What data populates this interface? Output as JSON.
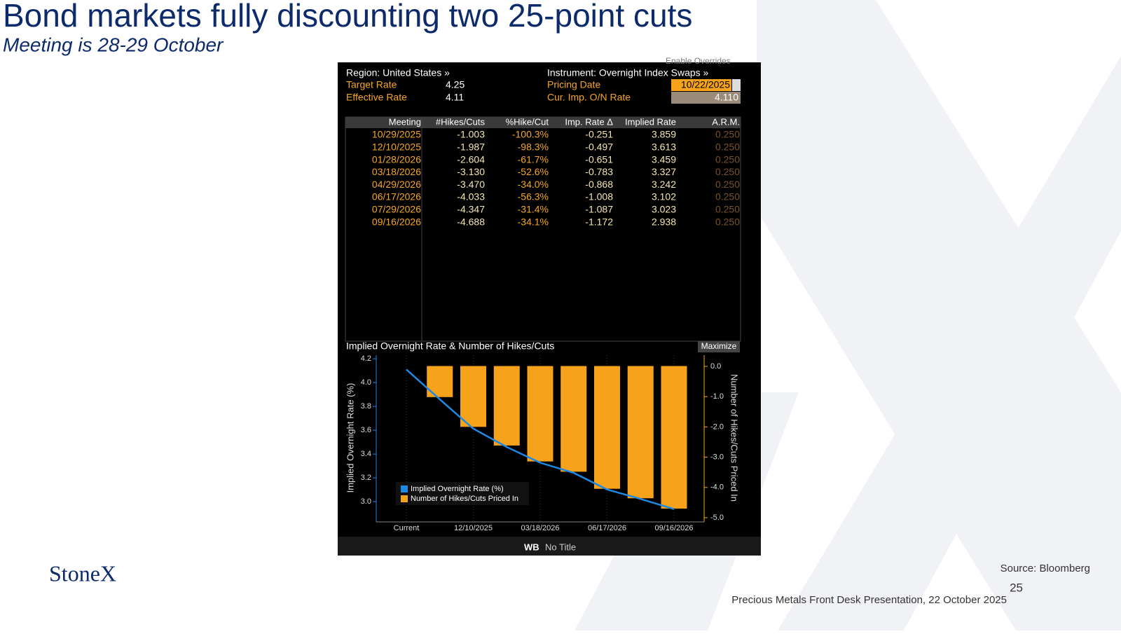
{
  "title": "Bond markets fully discounting two 25-point cuts",
  "subtitle": "Meeting is 28-29 October",
  "terminal": {
    "overrides": "Enable Overrides",
    "region": "Region: United States »",
    "instrument": "Instrument: Overnight Index Swaps »",
    "fields": [
      {
        "label": "Target Rate",
        "value": "4.25"
      },
      {
        "label": "Effective Rate",
        "value": "4.11"
      }
    ],
    "pricing_date_label": "Pricing Date",
    "pricing_date": "10/22/2025",
    "on_rate_label": "Cur. Imp. O/N Rate",
    "on_rate": "4.110",
    "table": {
      "columns": [
        "Meeting",
        "#Hikes/Cuts",
        "%Hike/Cut",
        "Imp. Rate Δ",
        "Implied Rate",
        "A.R.M."
      ],
      "rows": [
        [
          "10/29/2025",
          "-1.003",
          "-100.3%",
          "-0.251",
          "3.859",
          "0.250"
        ],
        [
          "12/10/2025",
          "-1.987",
          "-98.3%",
          "-0.497",
          "3.613",
          "0.250"
        ],
        [
          "01/28/2026",
          "-2.604",
          "-61.7%",
          "-0.651",
          "3.459",
          "0.250"
        ],
        [
          "03/18/2026",
          "-3.130",
          "-52.6%",
          "-0.783",
          "3.327",
          "0.250"
        ],
        [
          "04/29/2026",
          "-3.470",
          "-34.0%",
          "-0.868",
          "3.242",
          "0.250"
        ],
        [
          "06/17/2026",
          "-4.033",
          "-56.3%",
          "-1.008",
          "3.102",
          "0.250"
        ],
        [
          "07/29/2026",
          "-4.347",
          "-31.4%",
          "-1.087",
          "3.023",
          "0.250"
        ],
        [
          "09/16/2026",
          "-4.688",
          "-34.1%",
          "-1.172",
          "2.938",
          "0.250"
        ]
      ]
    },
    "chart_header": "Implied Overnight Rate & Number of Hikes/Cuts",
    "maximize": "Maximize",
    "footer_code": "WB",
    "footer_title": "No Title"
  },
  "chart_data": {
    "type": "combo",
    "categories": [
      "Current",
      null,
      "12/10/2025",
      null,
      "03/18/2026",
      null,
      "06/17/2026",
      null,
      "09/16/2026"
    ],
    "series": [
      {
        "name": "Implied Overnight Rate (%)",
        "type": "line",
        "color": "#1e88e5",
        "values": [
          4.11,
          3.859,
          3.613,
          3.459,
          3.327,
          3.242,
          3.102,
          3.023,
          2.938
        ]
      },
      {
        "name": "Number of Hikes/Cuts Priced In",
        "type": "bar",
        "color": "#f7a21b",
        "axis": "y2",
        "values": [
          0,
          -1.003,
          -1.987,
          -2.604,
          -3.13,
          -3.47,
          -4.033,
          -4.347,
          -4.688
        ]
      }
    ],
    "ylabel": "Implied Overnight Rate (%)",
    "y2label": "Number of Hikes/Cuts Priced In",
    "ylim": [
      2.83,
      4.23
    ],
    "yticks": [
      {
        "value": 3,
        "label": "3.0"
      },
      3.2,
      3.4,
      3.6,
      3.8,
      {
        "value": 4,
        "label": "4.0"
      },
      4.2
    ],
    "y2lim": [
      -5.14,
      0.37
    ],
    "y2ticks": [
      {
        "value": 0,
        "label": "0.0"
      },
      {
        "value": -1,
        "label": "-1.0"
      },
      {
        "value": -2,
        "label": "-2.0"
      },
      {
        "value": -3,
        "label": "-3.0"
      },
      {
        "value": -4,
        "label": "-4.0"
      },
      {
        "value": -5,
        "label": "-5.0"
      }
    ],
    "legend": "lower left"
  },
  "logo": "StoneX",
  "source": "Source: Bloomberg",
  "page_number": "25",
  "footer": "Precious Metals Front Desk Presentation, 22 October 2025"
}
